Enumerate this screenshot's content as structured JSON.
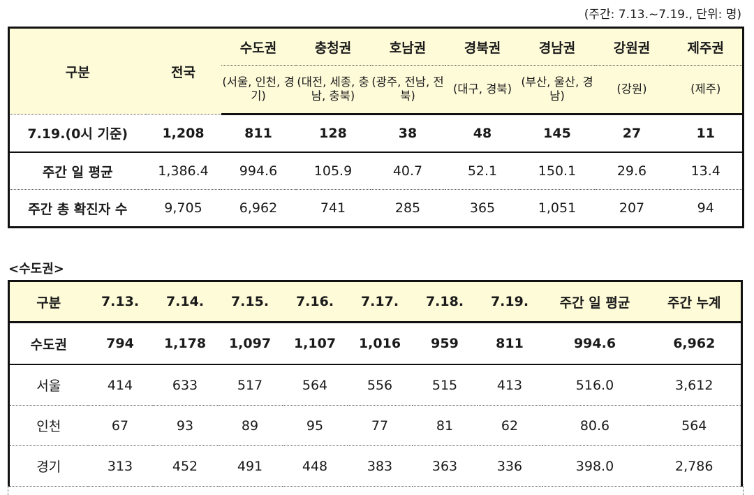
{
  "note": "(주간: 7.13.~7.19., 단위: 명)",
  "table1": {
    "corner": "구분",
    "national": "전국",
    "regions": [
      {
        "name": "수도권",
        "sub": "(서울, 인천, 경기)"
      },
      {
        "name": "충청권",
        "sub": "(대전, 세종, 충남, 충북)"
      },
      {
        "name": "호남권",
        "sub": "(광주, 전남, 전북)"
      },
      {
        "name": "경북권",
        "sub": "(대구, 경북)"
      },
      {
        "name": "경남권",
        "sub": "(부산, 울산, 경남)"
      },
      {
        "name": "강원권",
        "sub": "(강원)"
      },
      {
        "name": "제주권",
        "sub": "(제주)"
      }
    ],
    "rows": [
      {
        "label": "7.19.(0시 기준)",
        "values": [
          "1,208",
          "811",
          "128",
          "38",
          "48",
          "145",
          "27",
          "11"
        ]
      },
      {
        "label": "주간 일 평균",
        "values": [
          "1,386.4",
          "994.6",
          "105.9",
          "40.7",
          "52.1",
          "150.1",
          "29.6",
          "13.4"
        ]
      },
      {
        "label": "주간 총 확진자 수",
        "values": [
          "9,705",
          "6,962",
          "741",
          "285",
          "365",
          "1,051",
          "207",
          "94"
        ]
      }
    ]
  },
  "section_title": "<수도권>",
  "table2": {
    "headers": [
      "구분",
      "7.13.",
      "7.14.",
      "7.15.",
      "7.16.",
      "7.17.",
      "7.18.",
      "7.19.",
      "주간 일 평균",
      "주간 누계"
    ],
    "rows": [
      {
        "label": "수도권",
        "values": [
          "794",
          "1,178",
          "1,097",
          "1,107",
          "1,016",
          "959",
          "811",
          "994.6",
          "6,962"
        ]
      },
      {
        "label": "서울",
        "values": [
          "414",
          "633",
          "517",
          "564",
          "556",
          "515",
          "413",
          "516.0",
          "3,612"
        ]
      },
      {
        "label": "인천",
        "values": [
          "67",
          "93",
          "89",
          "95",
          "77",
          "81",
          "62",
          "80.6",
          "564"
        ]
      },
      {
        "label": "경기",
        "values": [
          "313",
          "452",
          "491",
          "448",
          "383",
          "363",
          "336",
          "398.0",
          "2,786"
        ]
      }
    ]
  }
}
